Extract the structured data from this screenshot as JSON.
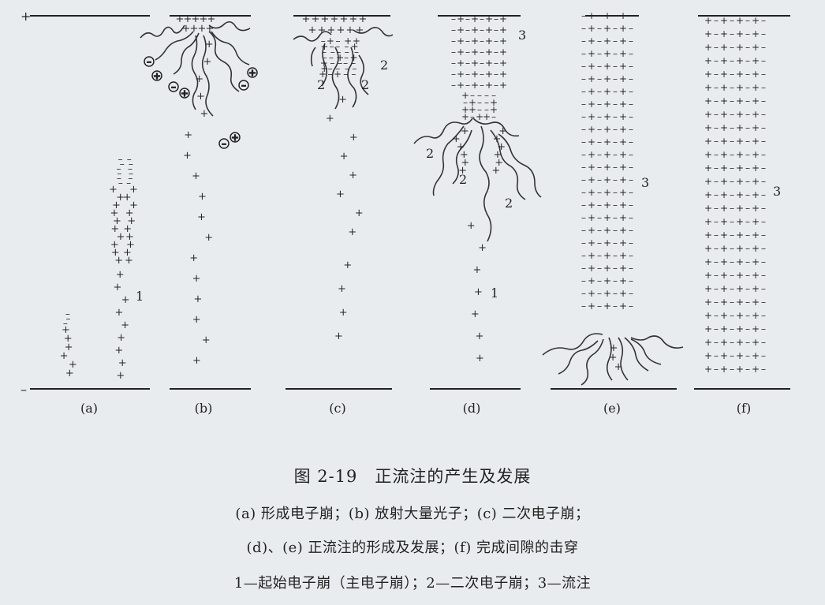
{
  "electrode_signs": {
    "top": "+",
    "bottom": "–"
  },
  "panel_labels": [
    "(a)",
    "(b)",
    "(c)",
    "(d)",
    "(e)",
    "(f)"
  ],
  "annotations": {
    "a": [
      "1"
    ],
    "c": [
      "2",
      "2",
      "2"
    ],
    "d": [
      "3",
      "2",
      "2",
      "2",
      "1"
    ],
    "e": [
      "3"
    ],
    "f": [
      "3"
    ]
  },
  "caption": {
    "title": "图 2-19　正流注的产生及发展",
    "line1": "(a) 形成电子崩；(b) 放射大量光子；(c) 二次电子崩；",
    "line2": "(d)、(e) 正流注的形成及发展；(f) 完成间隙的击穿",
    "line3": "1—起始电子崩（主电子崩）；2—二次电子崩；3—流注"
  }
}
